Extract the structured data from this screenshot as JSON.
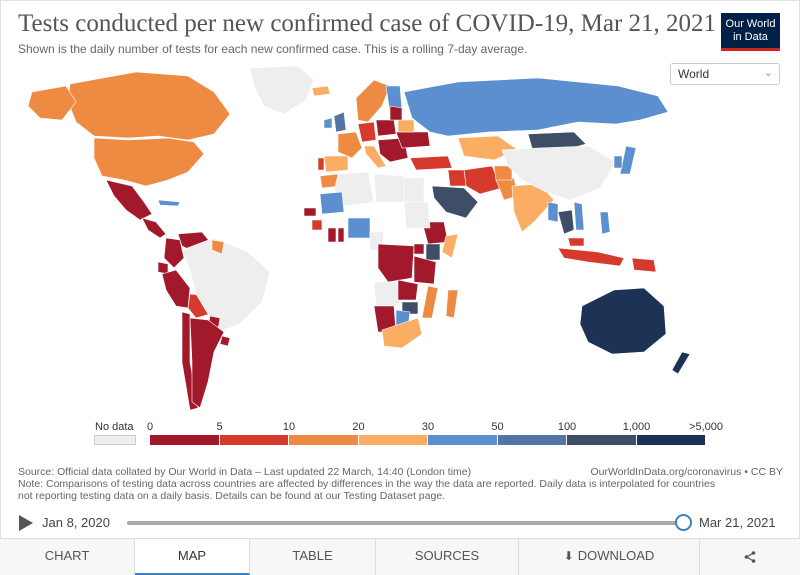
{
  "header": {
    "title": "Tests conducted per new confirmed case of COVID-19, Mar 21, 2021",
    "subtitle": "Shown is the daily number of tests for each new confirmed case. This is a rolling 7-day average."
  },
  "logo": {
    "line1": "Our World",
    "line2": "in Data"
  },
  "region_select": {
    "selected": "World"
  },
  "legend": {
    "nodata_label": "No data",
    "ticks": [
      "0",
      "5",
      "10",
      "20",
      "30",
      "50",
      "100",
      "1,000",
      ">5,000"
    ],
    "colors": [
      "#a2192b",
      "#d63a2c",
      "#ef8a43",
      "#fbae63",
      "#5b8fd0",
      "#5574a6",
      "#3e4e66",
      "#1d3356"
    ],
    "nodata_color": "#eeeeee"
  },
  "map": {
    "region": "World",
    "date": "Mar 21, 2021",
    "countries": {
      "canada": 2,
      "united_states": 2,
      "alaska": 2,
      "greenland": null,
      "mexico": 0,
      "central_america": 0,
      "cuba": 4,
      "venezuela": 0,
      "colombia": 0,
      "ecuador": 0,
      "peru": 0,
      "bolivia": 1,
      "brazil": null,
      "paraguay": 0,
      "chile": 0,
      "argentina": 0,
      "uruguay": 0,
      "guyana": 2,
      "iceland": 3,
      "scandinavia": 2,
      "finland": 4,
      "uk": 5,
      "ireland": 4,
      "france": 2,
      "spain": 3,
      "portugal": 1,
      "germany": 1,
      "poland": 0,
      "italy": 3,
      "balkans": 0,
      "ukraine": 0,
      "belarus": 3,
      "baltics": 0,
      "russia": 4,
      "turkey": 1,
      "iran": 1,
      "iraq": 1,
      "saudi_arabia": 6,
      "pakistan": 2,
      "afghanistan": 2,
      "india": 3,
      "kazakhstan": 3,
      "mongolia": 6,
      "china": null,
      "japan": 4,
      "korea": 4,
      "myanmar": 4,
      "thailand": 6,
      "vietnam": 4,
      "philippines": 4,
      "malaysia": 1,
      "indonesia": 1,
      "papua_new_guinea": 1,
      "australia": 7,
      "new_zealand": 7,
      "morocco": 2,
      "algeria": null,
      "libya": null,
      "egypt": null,
      "mali": 4,
      "senegal": 0,
      "guinea": 1,
      "ghana": 0,
      "togo": 0,
      "nigeria": 4,
      "cameroon": null,
      "ethiopia": 0,
      "kenya": 6,
      "somalia": 3,
      "dr_congo": 0,
      "uganda": 0,
      "tanzania": 0,
      "angola": null,
      "zambia": 0,
      "zimbabwe": 6,
      "mozambique": 2,
      "namibia": 0,
      "botswana": 4,
      "south_africa": 3,
      "madagascar": 2,
      "sudan": null
    }
  },
  "source": {
    "left": "Source: Official data collated by Our World in Data – Last updated 22 March, 14:40 (London time)",
    "right": "OurWorldInData.org/coronavirus • CC BY",
    "note1": "Note: Comparisons of testing data across countries are affected by differences in the way the data are reported. Daily data is interpolated for countries",
    "note2": "not reporting testing data on a daily basis. Details can be found at our Testing Dataset page."
  },
  "timeline": {
    "start": "Jan 8, 2020",
    "end": "Mar 21, 2021",
    "position": 1.0
  },
  "tabs": [
    {
      "label": "CHART",
      "active": false
    },
    {
      "label": "MAP",
      "active": true
    },
    {
      "label": "TABLE",
      "active": false
    },
    {
      "label": "SOURCES",
      "active": false
    },
    {
      "label": "DOWNLOAD",
      "active": false
    }
  ],
  "icons": {
    "share": "share-icon",
    "download": "download-icon",
    "play": "play-icon"
  }
}
